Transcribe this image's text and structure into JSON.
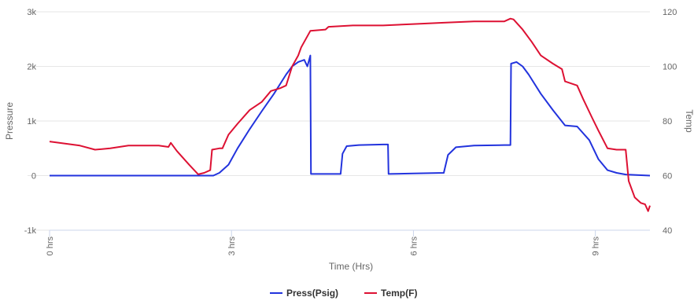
{
  "chart_data": {
    "type": "line",
    "xlabel": "Time (Hrs)",
    "x_ticks": [
      {
        "value": 0,
        "label": "0 hrs"
      },
      {
        "value": 3,
        "label": "3 hrs"
      },
      {
        "value": 6,
        "label": "6 hrs"
      },
      {
        "value": 9,
        "label": "9 hrs"
      }
    ],
    "xlim": [
      0,
      9.9
    ],
    "y_left": {
      "label": "Pressure",
      "ylim": [
        -1000,
        3000
      ],
      "ticks": [
        {
          "value": 3000,
          "label": "3k"
        },
        {
          "value": 2000,
          "label": "2k"
        },
        {
          "value": 1000,
          "label": "1k"
        },
        {
          "value": 0,
          "label": "0"
        },
        {
          "value": -1000,
          "label": "-1k"
        }
      ]
    },
    "y_right": {
      "label": "Temp",
      "ylim": [
        40,
        120
      ],
      "ticks": [
        {
          "value": 120,
          "label": "120"
        },
        {
          "value": 100,
          "label": "100"
        },
        {
          "value": 80,
          "label": "80"
        },
        {
          "value": 60,
          "label": "60"
        },
        {
          "value": 40,
          "label": "40"
        }
      ]
    },
    "grid": true,
    "legend_position": "bottom-center",
    "series": [
      {
        "name": "Press(Psig)",
        "axis": "left",
        "color": "#2233dd",
        "points": [
          [
            0,
            0
          ],
          [
            1,
            0
          ],
          [
            2,
            0
          ],
          [
            2.7,
            0
          ],
          [
            2.8,
            50
          ],
          [
            2.95,
            200
          ],
          [
            3.1,
            500
          ],
          [
            3.3,
            850
          ],
          [
            3.5,
            1180
          ],
          [
            3.7,
            1500
          ],
          [
            3.9,
            1850
          ],
          [
            4.0,
            2000
          ],
          [
            4.1,
            2080
          ],
          [
            4.2,
            2120
          ],
          [
            4.25,
            2000
          ],
          [
            4.3,
            2200
          ],
          [
            4.31,
            30
          ],
          [
            4.6,
            30
          ],
          [
            4.8,
            30
          ],
          [
            4.83,
            400
          ],
          [
            4.9,
            540
          ],
          [
            5.1,
            560
          ],
          [
            5.5,
            570
          ],
          [
            5.58,
            570
          ],
          [
            5.59,
            30
          ],
          [
            6.0,
            40
          ],
          [
            6.5,
            50
          ],
          [
            6.57,
            380
          ],
          [
            6.7,
            520
          ],
          [
            7.0,
            550
          ],
          [
            7.5,
            560
          ],
          [
            7.6,
            560
          ],
          [
            7.61,
            2050
          ],
          [
            7.7,
            2080
          ],
          [
            7.8,
            2000
          ],
          [
            7.9,
            1850
          ],
          [
            8.1,
            1500
          ],
          [
            8.3,
            1200
          ],
          [
            8.5,
            920
          ],
          [
            8.7,
            900
          ],
          [
            8.9,
            650
          ],
          [
            9.05,
            300
          ],
          [
            9.2,
            100
          ],
          [
            9.35,
            50
          ],
          [
            9.5,
            20
          ],
          [
            9.9,
            0
          ]
        ]
      },
      {
        "name": "Temp(F)",
        "axis": "right",
        "color": "#dd1133",
        "points": [
          [
            0,
            72.5
          ],
          [
            0.5,
            71
          ],
          [
            0.75,
            69.5
          ],
          [
            1.0,
            70
          ],
          [
            1.3,
            71
          ],
          [
            1.5,
            71
          ],
          [
            1.8,
            71
          ],
          [
            1.96,
            70.5
          ],
          [
            2.0,
            72
          ],
          [
            2.1,
            69
          ],
          [
            2.3,
            64
          ],
          [
            2.45,
            60.5
          ],
          [
            2.55,
            61
          ],
          [
            2.65,
            62
          ],
          [
            2.68,
            69.5
          ],
          [
            2.8,
            70
          ],
          [
            2.85,
            70
          ],
          [
            2.95,
            75
          ],
          [
            3.1,
            79
          ],
          [
            3.3,
            84
          ],
          [
            3.5,
            87
          ],
          [
            3.65,
            91
          ],
          [
            3.8,
            92
          ],
          [
            3.9,
            93
          ],
          [
            4.0,
            100
          ],
          [
            4.1,
            104
          ],
          [
            4.15,
            107
          ],
          [
            4.3,
            113
          ],
          [
            4.55,
            113.5
          ],
          [
            4.6,
            114.5
          ],
          [
            5.0,
            115
          ],
          [
            5.5,
            115
          ],
          [
            6.0,
            115.5
          ],
          [
            6.5,
            116
          ],
          [
            7.0,
            116.5
          ],
          [
            7.4,
            116.5
          ],
          [
            7.5,
            116.5
          ],
          [
            7.6,
            117.5
          ],
          [
            7.65,
            117.2
          ],
          [
            7.8,
            113.5
          ],
          [
            7.95,
            109
          ],
          [
            8.1,
            104
          ],
          [
            8.3,
            101
          ],
          [
            8.45,
            99
          ],
          [
            8.5,
            94.5
          ],
          [
            8.7,
            93
          ],
          [
            8.8,
            88
          ],
          [
            8.95,
            81
          ],
          [
            9.05,
            76.5
          ],
          [
            9.2,
            70
          ],
          [
            9.35,
            69.5
          ],
          [
            9.5,
            69.5
          ],
          [
            9.55,
            58
          ],
          [
            9.65,
            52
          ],
          [
            9.75,
            50
          ],
          [
            9.82,
            49.5
          ],
          [
            9.87,
            47
          ],
          [
            9.9,
            49
          ]
        ]
      }
    ]
  }
}
